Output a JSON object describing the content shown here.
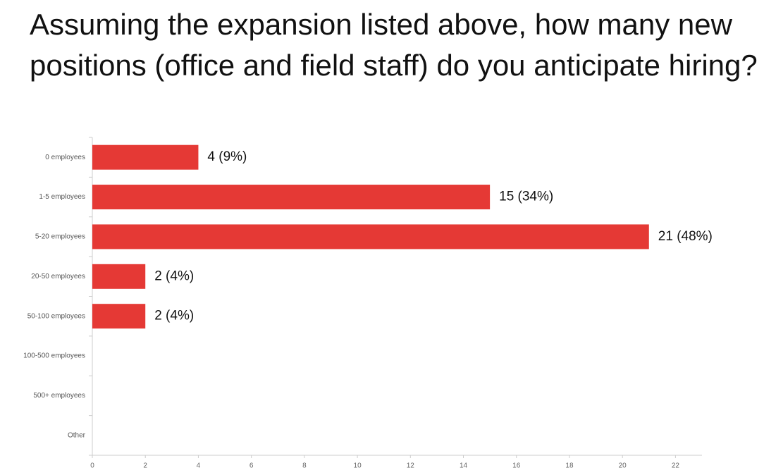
{
  "chart_data": {
    "type": "bar",
    "orientation": "horizontal",
    "title": "Assuming the expansion listed above, how many new positions (office and field staff) do you anticipate hiring?",
    "categories": [
      "0 employees",
      "1-5 employees",
      "5-20 employees",
      "20-50 employees",
      "50-100 employees",
      "100-500 employees",
      "500+ employees",
      "Other"
    ],
    "values": [
      4,
      15,
      21,
      2,
      2,
      0,
      0,
      0
    ],
    "value_labels": [
      "4 (9%)",
      "15 (34%)",
      "21 (48%)",
      "2 (4%)",
      "2 (4%)",
      null,
      null,
      null
    ],
    "color": "#e53935",
    "xlim": [
      0,
      23
    ],
    "xticks": [
      0,
      2,
      4,
      6,
      8,
      10,
      12,
      14,
      16,
      18,
      20,
      22
    ],
    "grid": false
  }
}
